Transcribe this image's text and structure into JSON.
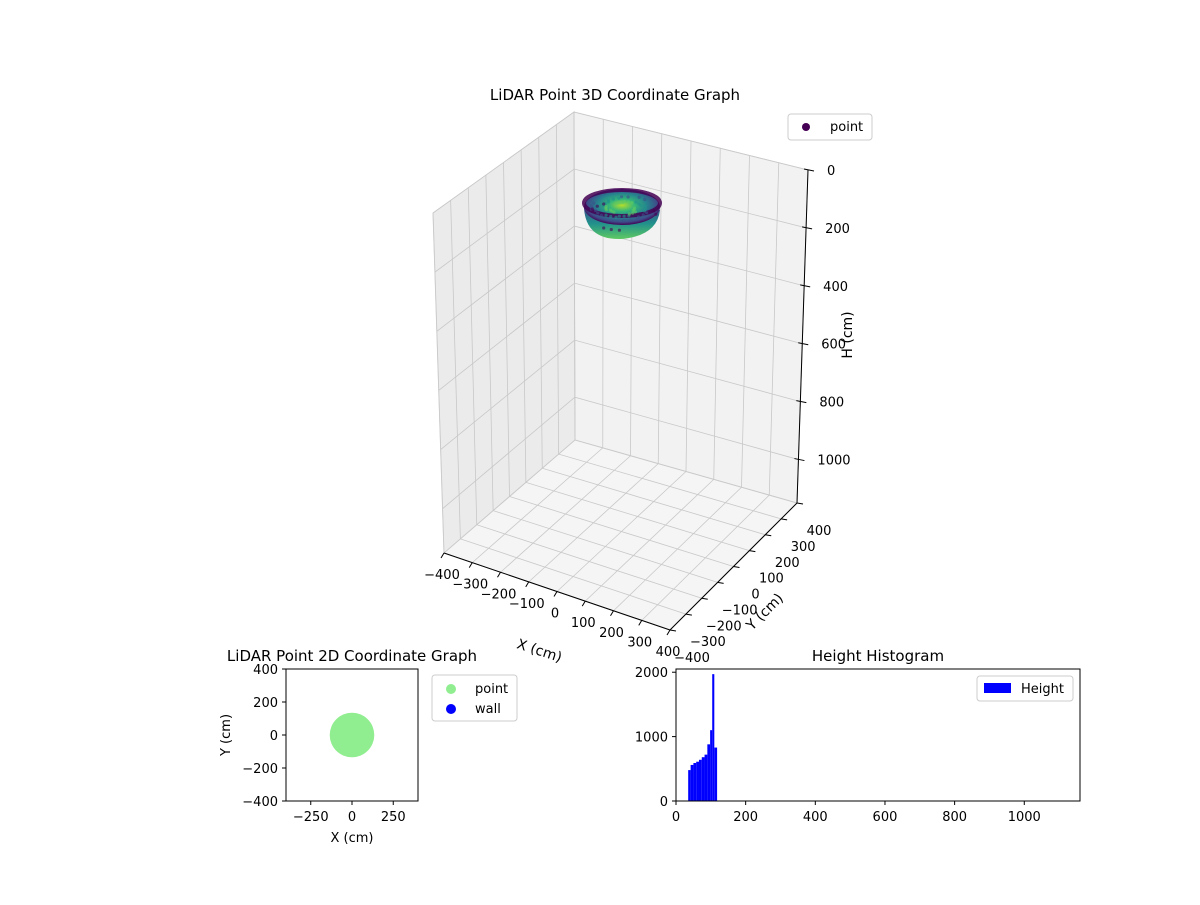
{
  "chart_data": [
    {
      "type": "scatter",
      "projection": "3d",
      "title": "LiDAR Point 3D Coordinate Graph",
      "xlabel": "X (cm)",
      "ylabel": "Y (cm)",
      "zlabel": "H (cm)",
      "xlim": [
        -400,
        400
      ],
      "ylim": [
        -400,
        400
      ],
      "zlim": [
        1150,
        0
      ],
      "z_inverted": true,
      "x_ticks": [
        "−400",
        "−300",
        "−200",
        "−100",
        "0",
        "100",
        "200",
        "300",
        "400"
      ],
      "y_ticks": [
        "−400",
        "−300",
        "−200",
        "−100",
        "0",
        "100",
        "200",
        "300",
        "400"
      ],
      "z_ticks": [
        "0",
        "200",
        "400",
        "600",
        "800",
        "1000"
      ],
      "grid": true,
      "legend": {
        "position": "top-right",
        "entries": [
          {
            "label": "point",
            "color": "#440154"
          }
        ]
      },
      "series": [
        {
          "name": "point",
          "colormap": "viridis",
          "shape": "bowl",
          "center_x": 0,
          "center_y": 0,
          "radius": 130,
          "height_range": [
            35,
            120
          ]
        }
      ]
    },
    {
      "type": "scatter",
      "title": "LiDAR Point 2D Coordinate Graph",
      "xlabel": "X (cm)",
      "ylabel": "Y (cm)",
      "xlim": [
        -400,
        400
      ],
      "ylim": [
        -400,
        400
      ],
      "x_ticks": [
        -250,
        0,
        250
      ],
      "y_ticks": [
        -400,
        -200,
        0,
        200,
        400
      ],
      "legend": {
        "position": "outside-right",
        "entries": [
          {
            "label": "point",
            "color": "#90ee90"
          },
          {
            "label": "wall",
            "color": "#0000ff"
          }
        ]
      },
      "series": [
        {
          "name": "point",
          "color": "#90ee90",
          "center": [
            0,
            0
          ],
          "radius": 135
        },
        {
          "name": "wall",
          "color": "#0000ff",
          "points": []
        }
      ]
    },
    {
      "type": "bar",
      "subtype": "histogram",
      "title": "Height Histogram",
      "xlabel": "",
      "ylabel": "",
      "xlim": [
        0,
        1160
      ],
      "ylim": [
        0,
        2050
      ],
      "x_ticks": [
        0,
        200,
        400,
        600,
        800,
        1000
      ],
      "y_ticks": [
        0,
        1000,
        2000
      ],
      "legend": {
        "position": "top-right",
        "entries": [
          {
            "label": "Height",
            "color": "#0000ff"
          }
        ]
      },
      "series": [
        {
          "name": "Height",
          "color": "#0000ff",
          "bins": [
            {
              "x0": 35,
              "x1": 42,
              "value": 480
            },
            {
              "x0": 42,
              "x1": 50,
              "value": 560
            },
            {
              "x0": 50,
              "x1": 58,
              "value": 590
            },
            {
              "x0": 58,
              "x1": 66,
              "value": 610
            },
            {
              "x0": 66,
              "x1": 74,
              "value": 640
            },
            {
              "x0": 74,
              "x1": 82,
              "value": 680
            },
            {
              "x0": 82,
              "x1": 90,
              "value": 720
            },
            {
              "x0": 90,
              "x1": 98,
              "value": 880
            },
            {
              "x0": 98,
              "x1": 104,
              "value": 1100
            },
            {
              "x0": 104,
              "x1": 110,
              "value": 1970
            },
            {
              "x0": 110,
              "x1": 118,
              "value": 830
            }
          ]
        }
      ]
    }
  ]
}
